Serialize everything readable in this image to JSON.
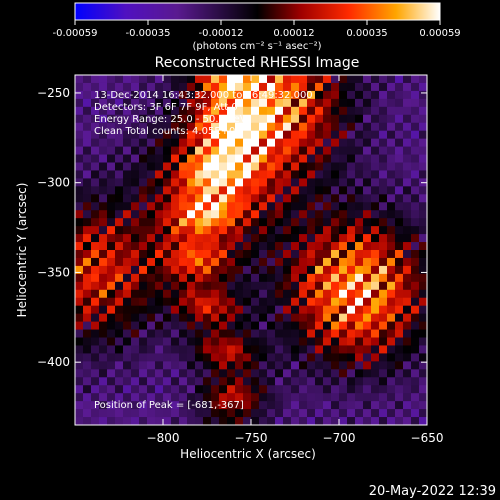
{
  "chart_data": {
    "type": "heatmap",
    "title": "Reconstructed RHESSI Image",
    "xlabel": "Heliocentric X (arcsec)",
    "ylabel": "Heliocentric Y (arcsec)",
    "xlim": [
      -850,
      -650
    ],
    "ylim": [
      -435,
      -240
    ],
    "x_ticks": [
      -800,
      -750,
      -700,
      -650
    ],
    "y_ticks": [
      -400,
      -350,
      -300,
      -250
    ],
    "colorbar": {
      "label": "(photons cm⁻² s⁻¹ asec⁻²)",
      "ticks": [
        "-0.00059",
        "-0.00035",
        "-0.00012",
        "0.00012",
        "0.00035",
        "0.00059"
      ],
      "range": [
        -0.00059,
        0.00059
      ],
      "colormap": [
        "#0000ff",
        "#6a0dad",
        "#000000",
        "#a00000",
        "#ff2000",
        "#ffa000",
        "#ffff60",
        "#ffffff"
      ]
    },
    "annotations": [
      "13-Dec-2014 16:43:32.000 to 16:49:32.000",
      "Detectors: 3F 6F 7F 9F, Att 0",
      "Energy Range: 25.0 - 50.0 keV",
      "Clean     Total counts: 4.05E+03"
    ],
    "peak": {
      "text": "Position of Peak = [-681,-367]",
      "x": -681,
      "y": -367
    },
    "sources": [
      {
        "x": -690,
        "y": -360,
        "strength": 1.0
      },
      {
        "x": -735,
        "y": -255,
        "strength": 0.85
      },
      {
        "x": -840,
        "y": -350,
        "strength": 0.7
      },
      {
        "x": -770,
        "y": -300,
        "strength": 0.6
      }
    ]
  },
  "timestamp": "20-May-2022 12:39"
}
